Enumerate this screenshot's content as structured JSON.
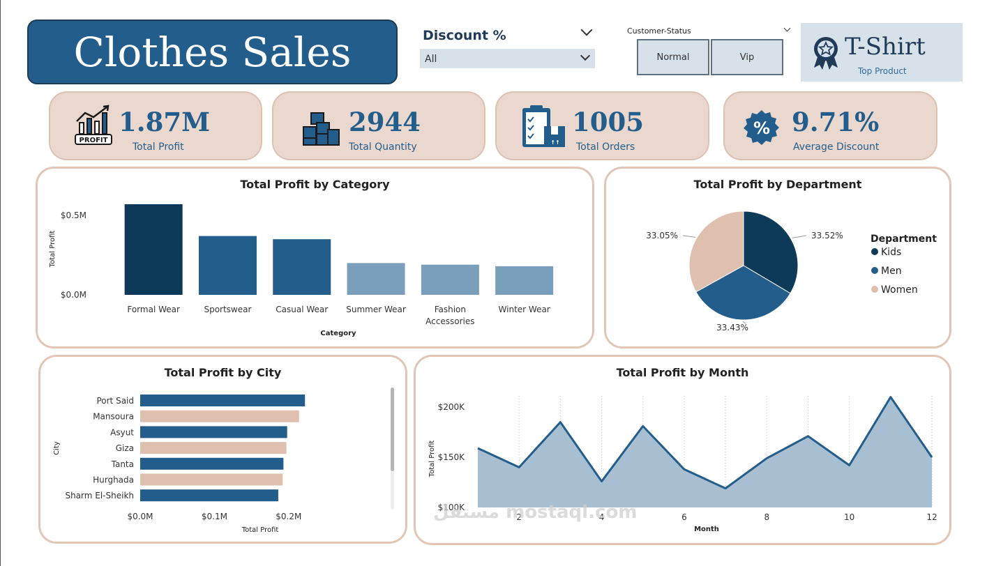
{
  "header": {
    "title": "Clothes Sales"
  },
  "discount_slicer": {
    "label": "Discount %",
    "selected": "All"
  },
  "customer_status": {
    "label": "Customer-Status",
    "options": [
      "Normal",
      "Vip"
    ]
  },
  "top_product": {
    "name": "T-Shirt",
    "label": "Top Product",
    "icon": "award-icon"
  },
  "kpis": [
    {
      "value": "1.87M",
      "label": "Total Profit",
      "icon": "profit-chart-icon"
    },
    {
      "value": "2944",
      "label": "Total Quantity",
      "icon": "boxes-icon"
    },
    {
      "value": "1005",
      "label": "Total Orders",
      "icon": "order-clipboard-icon"
    },
    {
      "value": "9.71%",
      "label": "Average Discount",
      "icon": "percent-badge-icon"
    }
  ],
  "chart_data": [
    {
      "type": "bar",
      "title": "Total Profit by Category",
      "xlabel": "Category",
      "ylabel": "Total Profit",
      "categories": [
        "Formal Wear",
        "Sportswear",
        "Casual Wear",
        "Summer Wear",
        "Fashion Accessories",
        "Winter Wear"
      ],
      "values": [
        0.57,
        0.37,
        0.35,
        0.2,
        0.19,
        0.18
      ],
      "colors": [
        "#0e3a5a",
        "#225d8c",
        "#225d8c",
        "#7a9fbb",
        "#7a9fbb",
        "#7a9fbb"
      ],
      "ylim": [
        0,
        0.57
      ],
      "yticks": [
        0,
        0.5
      ],
      "ytick_labels": [
        "$0.0M",
        "$0.5M"
      ],
      "grid": false
    },
    {
      "type": "pie",
      "title": "Total Profit by Department",
      "legend_title": "Department",
      "legend_position": "right",
      "labels": [
        "Kids",
        "Men",
        "Women"
      ],
      "values": [
        33.52,
        33.43,
        33.05
      ],
      "data_labels": [
        "33.52%",
        "33.43%",
        "33.05%"
      ],
      "colors": [
        "#0e3a5a",
        "#225d8c",
        "#dfbfad"
      ]
    },
    {
      "type": "bar",
      "orientation": "horizontal",
      "title": "Total Profit by City",
      "xlabel": "Total Profit",
      "ylabel": "City",
      "categories": [
        "Port Said",
        "Mansoura",
        "Asyut",
        "Giza",
        "Tanta",
        "Hurghada",
        "Sharm El-Sheikh"
      ],
      "values": [
        0.222,
        0.214,
        0.198,
        0.197,
        0.193,
        0.192,
        0.186
      ],
      "colors": [
        "#225d8c",
        "#dfbfad",
        "#225d8c",
        "#dfbfad",
        "#225d8c",
        "#dfbfad",
        "#225d8c"
      ],
      "xlim": [
        0,
        0.25
      ],
      "xticks": [
        0,
        0.1,
        0.2
      ],
      "xtick_labels": [
        "$0.0M",
        "$0.1M",
        "$0.2M"
      ],
      "grid": false
    },
    {
      "type": "area",
      "title": "Total Profit by Month",
      "xlabel": "Month",
      "ylabel": "Total Profit",
      "x": [
        1,
        2,
        3,
        4,
        5,
        6,
        7,
        8,
        9,
        10,
        11,
        12
      ],
      "y": [
        159,
        140,
        185,
        126,
        181,
        138,
        119,
        149,
        171,
        142,
        210,
        150
      ],
      "xlim": [
        1,
        12
      ],
      "ylim": [
        100,
        225
      ],
      "xticks": [
        2,
        4,
        6,
        8,
        10,
        12
      ],
      "xtick_labels": [
        "2",
        "4",
        "6",
        "8",
        "10",
        "12"
      ],
      "yticks": [
        100,
        150,
        200
      ],
      "ytick_labels": [
        "$100K",
        "$150K",
        "$200K"
      ],
      "grid": "vertical dotted",
      "line_color": "#225d8c",
      "fill_color": "#a8bfd2"
    }
  ],
  "watermark": "مستقل mostaql.com"
}
